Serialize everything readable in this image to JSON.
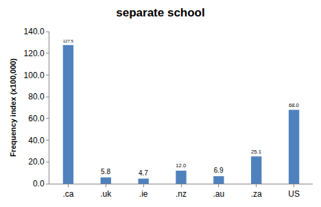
{
  "chart_data": {
    "type": "bar",
    "title": "separate school",
    "y_label": "Frequency index (x100,000)",
    "categories": [
      ".ca",
      ".uk",
      ".ie",
      ".nz",
      ".au",
      ".za",
      "US"
    ],
    "values": [
      127.5,
      5.8,
      4.7,
      12.0,
      6.9,
      25.1,
      68.0
    ],
    "value_labels": [
      "127.5",
      "5.8",
      "4.7",
      "12.0",
      "6.9",
      "25.1",
      "68.0"
    ],
    "color": "#4f81bd",
    "ylim": [
      0,
      140
    ],
    "yticks": [
      {
        "value": 0,
        "label": "0.0"
      },
      {
        "value": 20,
        "label": "20.0"
      },
      {
        "value": 40,
        "label": "40.0"
      },
      {
        "value": 60,
        "label": "60.0"
      },
      {
        "value": 80,
        "label": "80.0"
      },
      {
        "value": 100,
        "label": "100.0"
      },
      {
        "value": 120,
        "label": "120.0"
      },
      {
        "value": 140,
        "label": "140.0"
      }
    ],
    "grid": false,
    "data_labels": true
  }
}
